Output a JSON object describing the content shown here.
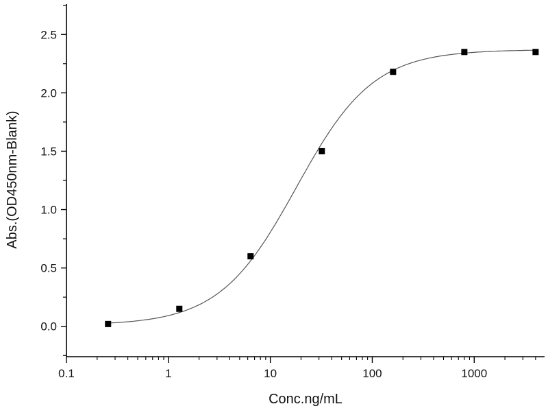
{
  "chart_data": {
    "type": "scatter",
    "title": "",
    "xlabel": "Conc.ng/mL",
    "ylabel": "Abs.(OD450nm-Blank)",
    "xscale": "log",
    "xlim": [
      0.1,
      4900
    ],
    "ylim": [
      -0.26,
      2.76
    ],
    "xticks": [
      {
        "value": 0.1,
        "label": "0.1"
      },
      {
        "value": 1,
        "label": "1"
      },
      {
        "value": 10,
        "label": "10"
      },
      {
        "value": 100,
        "label": "100"
      },
      {
        "value": 1000,
        "label": "1000"
      }
    ],
    "yticks": [
      {
        "value": 0.0,
        "label": "0.0"
      },
      {
        "value": 0.5,
        "label": "0.5"
      },
      {
        "value": 1.0,
        "label": "1.0"
      },
      {
        "value": 1.5,
        "label": "1.5"
      },
      {
        "value": 2.0,
        "label": "2.0"
      },
      {
        "value": 2.5,
        "label": "2.5"
      }
    ],
    "grid": false,
    "legend": "none",
    "marker": "square",
    "fit_curve": "sigmoidal",
    "colors": {
      "points": "#000000",
      "curve": "#555555",
      "axes": "#000000"
    },
    "points": [
      {
        "x": 0.256,
        "y": 0.02
      },
      {
        "x": 1.28,
        "y": 0.15
      },
      {
        "x": 6.4,
        "y": 0.6
      },
      {
        "x": 32,
        "y": 1.5
      },
      {
        "x": 160,
        "y": 2.18
      },
      {
        "x": 800,
        "y": 2.35
      },
      {
        "x": 4000,
        "y": 2.35
      }
    ]
  }
}
